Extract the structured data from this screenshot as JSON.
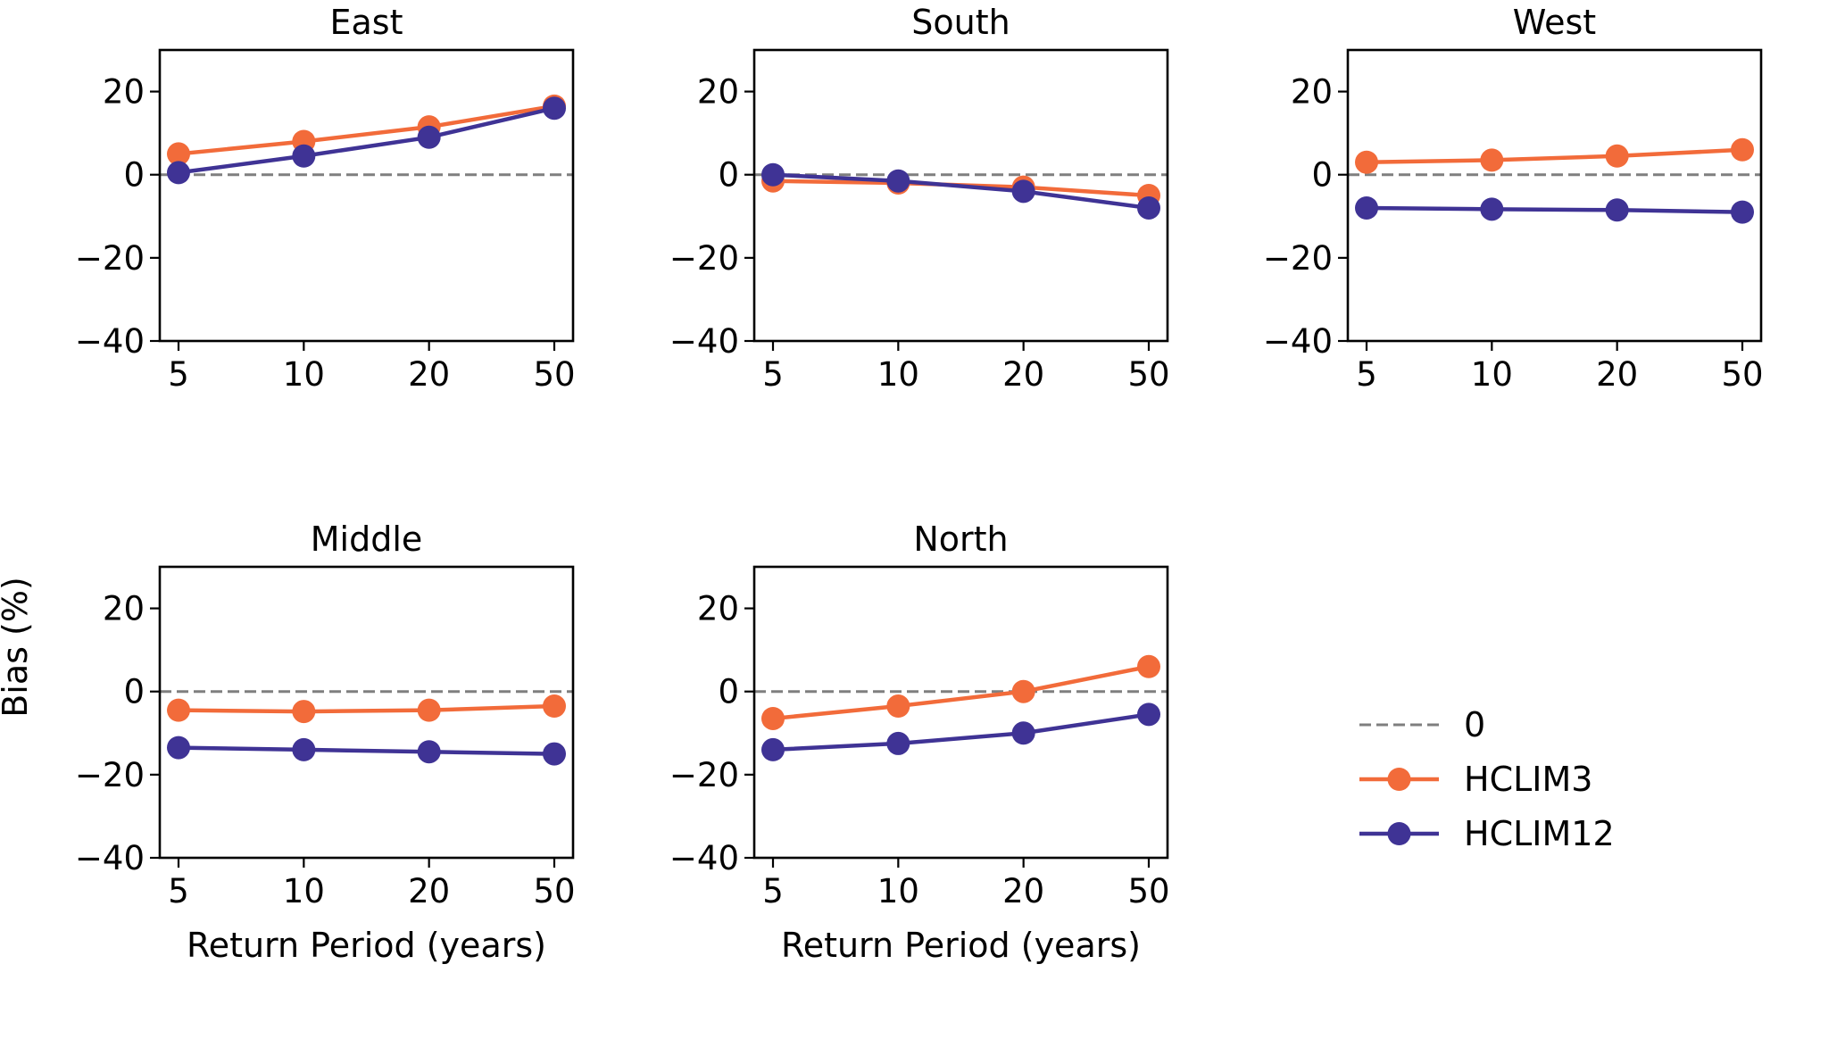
{
  "chart_data": {
    "type": "line",
    "ylabel": "Bias (%)",
    "xlabel": "Return Period (years)",
    "categories": [
      "5",
      "10",
      "20",
      "50"
    ],
    "yticks": [
      "20",
      "0",
      "−20",
      "−40"
    ],
    "ylim": [
      -40,
      30
    ],
    "reference_line": {
      "label": "0",
      "value": 0,
      "color": "#7f7f7f",
      "style": "dashed"
    },
    "series_meta": [
      {
        "name": "HCLIM3",
        "color": "#f26b3a"
      },
      {
        "name": "HCLIM12",
        "color": "#3f3395"
      }
    ],
    "panels": [
      {
        "title": "East",
        "show_xlabel": false,
        "show_ylabel": false,
        "series": [
          {
            "name": "HCLIM3",
            "values": [
              5,
              8,
              11.5,
              16.5
            ]
          },
          {
            "name": "HCLIM12",
            "values": [
              0.5,
              4.5,
              9,
              16
            ]
          }
        ]
      },
      {
        "title": "South",
        "show_xlabel": false,
        "show_ylabel": false,
        "series": [
          {
            "name": "HCLIM3",
            "values": [
              -1.5,
              -2,
              -3,
              -5
            ]
          },
          {
            "name": "HCLIM12",
            "values": [
              0,
              -1.5,
              -4,
              -8
            ]
          }
        ]
      },
      {
        "title": "West",
        "show_xlabel": false,
        "show_ylabel": false,
        "series": [
          {
            "name": "HCLIM3",
            "values": [
              3,
              3.5,
              4.5,
              6
            ]
          },
          {
            "name": "HCLIM12",
            "values": [
              -8,
              -8.3,
              -8.5,
              -9
            ]
          }
        ]
      },
      {
        "title": "Middle",
        "show_xlabel": true,
        "show_ylabel": true,
        "series": [
          {
            "name": "HCLIM3",
            "values": [
              -4.5,
              -4.8,
              -4.5,
              -3.5
            ]
          },
          {
            "name": "HCLIM12",
            "values": [
              -13.5,
              -14,
              -14.5,
              -15
            ]
          }
        ]
      },
      {
        "title": "North",
        "show_xlabel": true,
        "show_ylabel": false,
        "series": [
          {
            "name": "HCLIM3",
            "values": [
              -6.5,
              -3.5,
              0,
              6
            ]
          },
          {
            "name": "HCLIM12",
            "values": [
              -14,
              -12.5,
              -10,
              -5.5
            ]
          }
        ]
      }
    ],
    "legend": {
      "position": "right",
      "entries": [
        "0",
        "HCLIM3",
        "HCLIM12"
      ]
    }
  }
}
